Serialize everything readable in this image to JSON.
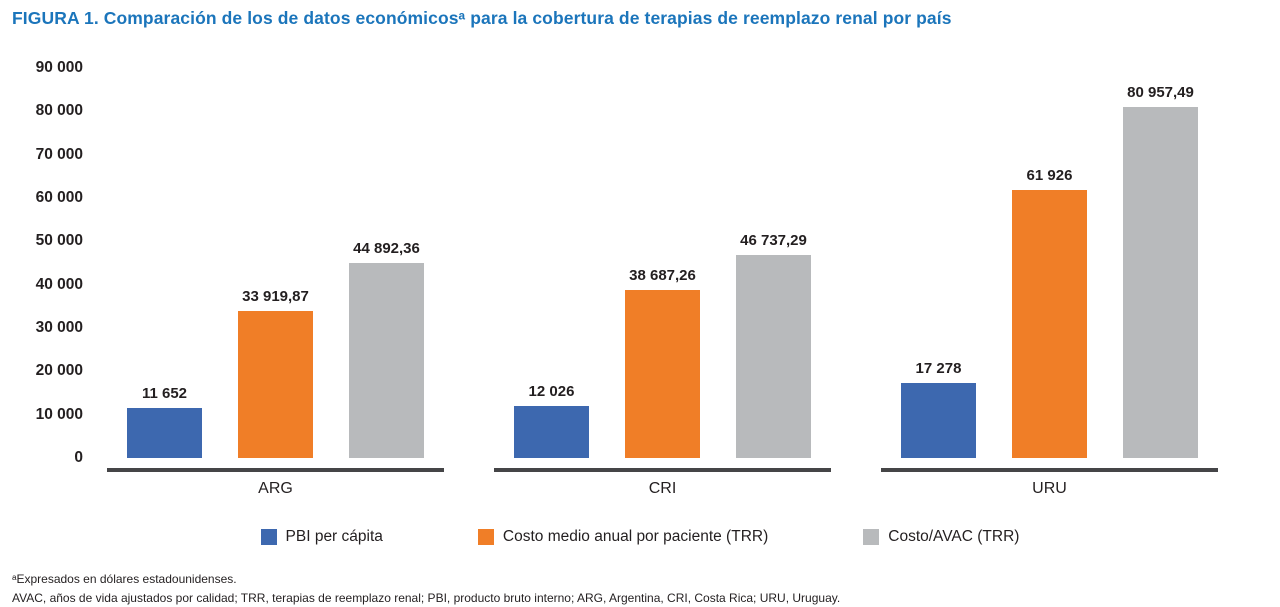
{
  "figure": {
    "title": "FIGURA 1. Comparación de los de datos económicosᵃ para la cobertura de terapias de reemplazo renal por país",
    "footnotes": [
      "ᵃExpresados en dólares estadounidenses.",
      "AVAC, años de vida ajustados por calidad; TRR, terapias de reemplazo renal; PBI, producto bruto interno; ARG, Argentina, CRI, Costa Rica; URU, Uruguay."
    ]
  },
  "chart_data": {
    "type": "bar",
    "title": "FIGURA 1. Comparación de los de datos económicosᵃ para la cobertura de terapias de reemplazo renal por país",
    "categories": [
      "ARG",
      "CRI",
      "URU"
    ],
    "series": [
      {
        "name": "PBI per cápita",
        "color": "#3D68AF",
        "values": [
          11652,
          12026,
          17278
        ],
        "labels": [
          "11 652",
          "12 026",
          "17 278"
        ]
      },
      {
        "name": "Costo medio anual por paciente (TRR)",
        "color": "#F07E27",
        "values": [
          33919.87,
          38687.26,
          61926
        ],
        "labels": [
          "33 919,87",
          "38 687,26",
          "61 926"
        ]
      },
      {
        "name": "Costo/AVAC (TRR)",
        "color": "#B8BABC",
        "values": [
          44892.36,
          46737.29,
          80957.49
        ],
        "labels": [
          "44 892,36",
          "46 737,29",
          "80 957,49"
        ]
      }
    ],
    "xlabel": "",
    "ylabel": "",
    "ylim": [
      0,
      90000
    ],
    "ytick_step": 10000,
    "ytick_labels": [
      "0",
      "10 000",
      "20 000",
      "30 000",
      "40 000",
      "50 000",
      "60 000",
      "70 000",
      "80 000",
      "90 000"
    ],
    "grid": false,
    "legend_position": "bottom",
    "units": "dólares estadounidenses"
  },
  "colors": {
    "title_blue": "#1B75BB",
    "bar_blue": "#3D68AF",
    "bar_orange": "#F07E27",
    "bar_gray": "#B8BABC",
    "axis_line": "#454547",
    "text": "#231F20"
  }
}
